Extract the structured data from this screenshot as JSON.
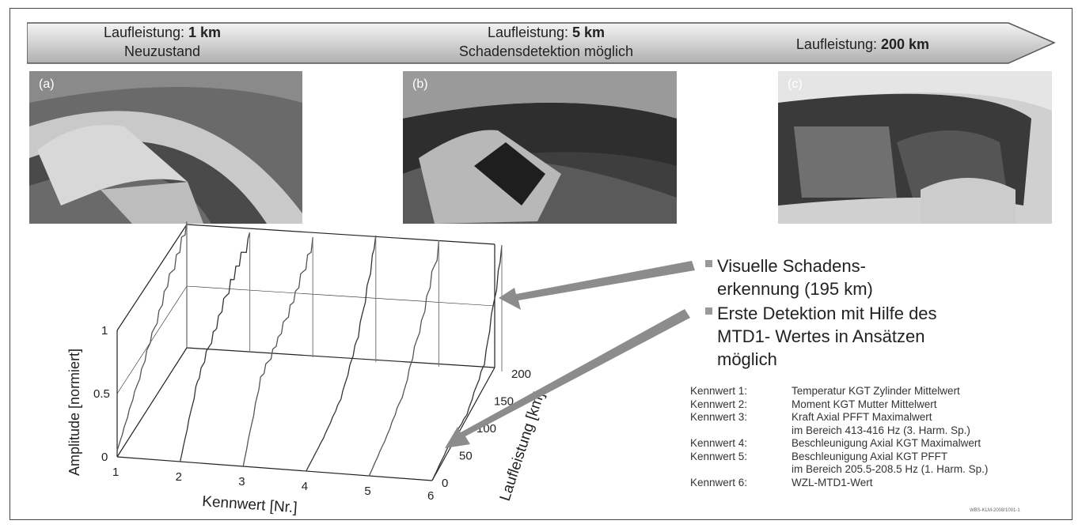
{
  "stages": [
    {
      "label": "Laufleistung:",
      "value": "1 km",
      "sub": "Neuzustand"
    },
    {
      "label": "Laufleistung:",
      "value": "5 km",
      "sub": "Schadensdetektion möglich"
    },
    {
      "label": "Laufleistung:",
      "value": "200 km",
      "sub": ""
    }
  ],
  "photos": [
    {
      "tag": "(a)"
    },
    {
      "tag": "(b)"
    },
    {
      "tag": "(c)"
    }
  ],
  "bullets": [
    {
      "lines": [
        "Visuelle Schadens-",
        "erkennung (195 km)"
      ]
    },
    {
      "lines": [
        "Erste Detektion mit Hilfe des",
        "MTD1- Wertes in Ansätzen",
        "möglich"
      ]
    }
  ],
  "legend": [
    {
      "key": "Kennwert 1:",
      "desc": "Temperatur KGT Zylinder Mittelwert",
      "desc2": ""
    },
    {
      "key": "Kennwert 2:",
      "desc": "Moment KGT Mutter Mittelwert",
      "desc2": ""
    },
    {
      "key": "Kennwert 3:",
      "desc": "Kraft Axial PFFT Maximalwert",
      "desc2": "im Bereich 413-416 Hz (3. Harm. Sp.)"
    },
    {
      "key": "Kennwert 4:",
      "desc": "Beschleunigung Axial KGT Maximalwert",
      "desc2": ""
    },
    {
      "key": "Kennwert 5:",
      "desc": "Beschleunigung Axial KGT PFFT",
      "desc2": "im Bereich 205.5-208.5 Hz (1. Harm. Sp.)"
    },
    {
      "key": "Kennwert 6:",
      "desc": "WZL-MTD1-Wert",
      "desc2": ""
    }
  ],
  "chart": {
    "ylabel": "Amplitude [normiert]",
    "xlabel": "Kennwert [Nr.]",
    "zlabel": "Laufleistung [km]",
    "yticks": [
      "0",
      "0.5",
      "1"
    ],
    "xticks": [
      "1",
      "2",
      "3",
      "4",
      "5",
      "6"
    ],
    "zticks": [
      "0",
      "50",
      "100",
      "150",
      "200"
    ]
  },
  "chart_data": {
    "type": "line",
    "title": "",
    "xlabel": "Kennwert [Nr.]",
    "ylabel": "Amplitude [normiert]",
    "zlabel": "Laufleistung [km]",
    "xlim": [
      1,
      6
    ],
    "ylim": [
      0,
      1
    ],
    "zlim": [
      0,
      200
    ],
    "series": [
      {
        "kennwert": 1,
        "km": [
          0,
          50,
          100,
          150,
          200
        ],
        "amplitude": [
          0.05,
          0.3,
          0.55,
          0.8,
          1.0
        ]
      },
      {
        "kennwert": 2,
        "km": [
          0,
          50,
          100,
          150,
          200
        ],
        "amplitude": [
          0.0,
          0.45,
          0.65,
          0.85,
          0.95
        ]
      },
      {
        "kennwert": 3,
        "km": [
          0,
          50,
          100,
          150,
          200
        ],
        "amplitude": [
          0.0,
          0.5,
          0.6,
          0.75,
          0.95
        ]
      },
      {
        "kennwert": 4,
        "km": [
          0,
          50,
          100,
          150,
          200
        ],
        "amplitude": [
          0.0,
          0.05,
          0.15,
          0.45,
          1.0
        ]
      },
      {
        "kennwert": 5,
        "km": [
          0,
          50,
          100,
          150,
          200
        ],
        "amplitude": [
          0.0,
          0.1,
          0.25,
          0.6,
          1.0
        ]
      },
      {
        "kennwert": 6,
        "km": [
          0,
          50,
          100,
          150,
          200
        ],
        "amplitude": [
          0.0,
          0.08,
          0.1,
          0.3,
          1.0
        ]
      }
    ]
  },
  "stamp": "WBS-KLM-2008/1001-1",
  "colors": {
    "arrow": "#8c8c8c",
    "banner_top": "#efefef",
    "banner_bottom": "#b4b4b4"
  }
}
